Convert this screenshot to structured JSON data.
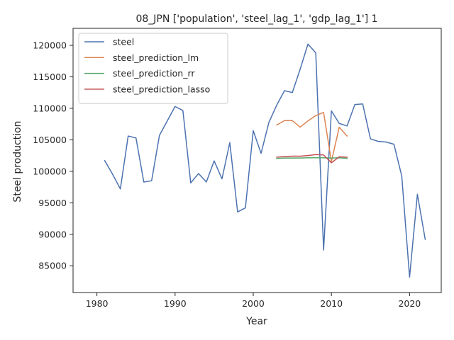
{
  "chart_data": {
    "type": "line",
    "title": "08_JPN ['population', 'steel_lag_1', 'gdp_lag_1'] 1",
    "xlabel": "Year",
    "ylabel": "Steel production",
    "xlim": [
      1976.95,
      2024.05
    ],
    "ylim": [
      80750,
      122700
    ],
    "xticks": [
      1980,
      1990,
      2000,
      2010,
      2020
    ],
    "yticks": [
      85000,
      90000,
      95000,
      100000,
      105000,
      110000,
      115000,
      120000
    ],
    "grid": false,
    "legend_position": "top-left",
    "series": [
      {
        "name": "steel",
        "color": "#4c72b0",
        "x": [
          1981,
          1982,
          1983,
          1984,
          1985,
          1986,
          1987,
          1988,
          1989,
          1990,
          1991,
          1992,
          1993,
          1994,
          1995,
          1996,
          1997,
          1998,
          1999,
          2000,
          2001,
          2002,
          2003,
          2004,
          2005,
          2006,
          2007,
          2008,
          2009,
          2010,
          2011,
          2012,
          2013,
          2014,
          2015,
          2016,
          2017,
          2018,
          2019,
          2020,
          2021,
          2022
        ],
        "y": [
          101700,
          99550,
          97200,
          105600,
          105300,
          98300,
          98500,
          105700,
          108000,
          110300,
          109650,
          98150,
          99650,
          98300,
          101650,
          98800,
          104550,
          93550,
          94200,
          106450,
          102850,
          107750,
          110500,
          112800,
          112500,
          116200,
          120200,
          118800,
          87500,
          109600,
          107600,
          107200,
          110600,
          110700,
          105150,
          104750,
          104650,
          104300,
          99250,
          83200,
          96350,
          89200
        ]
      },
      {
        "name": "steel_prediction_lm",
        "color": "#dd8452",
        "x": [
          2003,
          2004,
          2005,
          2006,
          2007,
          2008,
          2009,
          2010,
          2011,
          2012
        ],
        "y": [
          107350,
          108050,
          108050,
          107000,
          108000,
          108850,
          109350,
          101550,
          107000,
          105600
        ]
      },
      {
        "name": "steel_prediction_rr",
        "color": "#55a868",
        "x": [
          2003,
          2004,
          2005,
          2006,
          2007,
          2008,
          2009,
          2010,
          2011,
          2012
        ],
        "y": [
          102050,
          102100,
          102100,
          102100,
          102150,
          102150,
          102150,
          102100,
          102150,
          102050
        ]
      },
      {
        "name": "steel_prediction_lasso",
        "color": "#c44e52",
        "x": [
          2003,
          2004,
          2005,
          2006,
          2007,
          2008,
          2009,
          2010,
          2011,
          2012
        ],
        "y": [
          102250,
          102350,
          102400,
          102400,
          102500,
          102650,
          102600,
          101350,
          102300,
          102250
        ]
      }
    ]
  }
}
